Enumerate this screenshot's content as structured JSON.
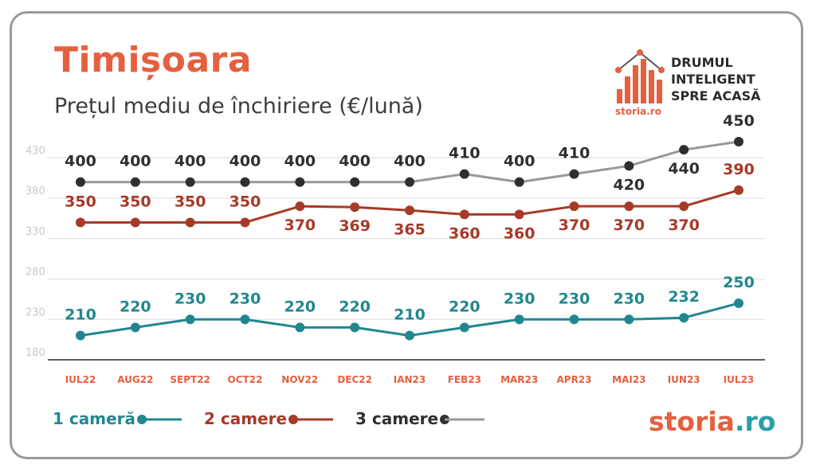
{
  "header": {
    "title": "Timișoara",
    "subtitle": "Prețul mediu de închiriere (€/lună)"
  },
  "brand": {
    "line1": "DRUMUL",
    "line2": "INTELIGENT",
    "line3": "SPRE ACASĂ",
    "small_logo_text": "storia.ro",
    "footer_logo_part1": "storia",
    "footer_logo_part2": ".ro"
  },
  "colors": {
    "title": "#e4603f",
    "series_1": "#21878f",
    "series_2": "#a53a28",
    "series_3_line": "#999999",
    "series_3_marker": "#2f2f2f",
    "axis_text": "#c8c8c8",
    "category_text": "#e4603f"
  },
  "chart_data": {
    "type": "line",
    "categories": [
      "IUL22",
      "AUG22",
      "SEPT22",
      "OCT22",
      "NOV22",
      "DEC22",
      "IAN23",
      "FEB23",
      "MAR23",
      "APR23",
      "MAI23",
      "IUN23",
      "IUL23"
    ],
    "ylim": [
      180,
      450
    ],
    "yticks": [
      180,
      230,
      280,
      330,
      380,
      430
    ],
    "grid": true,
    "legend_position": "bottom-left",
    "series": [
      {
        "name": "1 cameră",
        "values": [
          210,
          220,
          230,
          230,
          220,
          220,
          210,
          220,
          230,
          230,
          230,
          232,
          250
        ]
      },
      {
        "name": "2 camere",
        "values": [
          350,
          350,
          350,
          350,
          370,
          369,
          365,
          360,
          360,
          370,
          370,
          370,
          390
        ]
      },
      {
        "name": "3 camere",
        "values": [
          400,
          400,
          400,
          400,
          400,
          400,
          400,
          410,
          400,
          410,
          420,
          440,
          450
        ]
      }
    ]
  }
}
